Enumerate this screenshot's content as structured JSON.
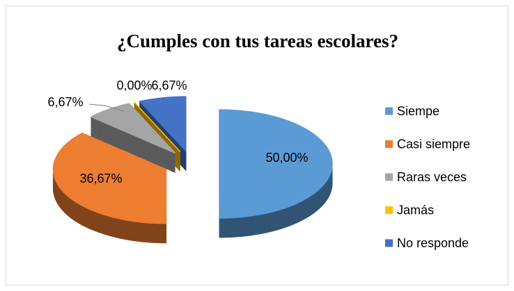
{
  "chart_data": {
    "type": "pie3d",
    "title": "¿Cumples con tus tareas escolares?",
    "categories": [
      "Siempe",
      "Casi siempre",
      "Raras veces",
      "Jamás",
      "No responde"
    ],
    "values": [
      50,
      36.67,
      6.67,
      0,
      6.67
    ],
    "value_labels": [
      "50,00%",
      "36,67%",
      "6,67%",
      "0,00%",
      "6,67%"
    ],
    "colors": [
      "#5b9bd5",
      "#ed7d31",
      "#a5a5a5",
      "#ffc000",
      "#4472c4"
    ],
    "legend": "right"
  }
}
